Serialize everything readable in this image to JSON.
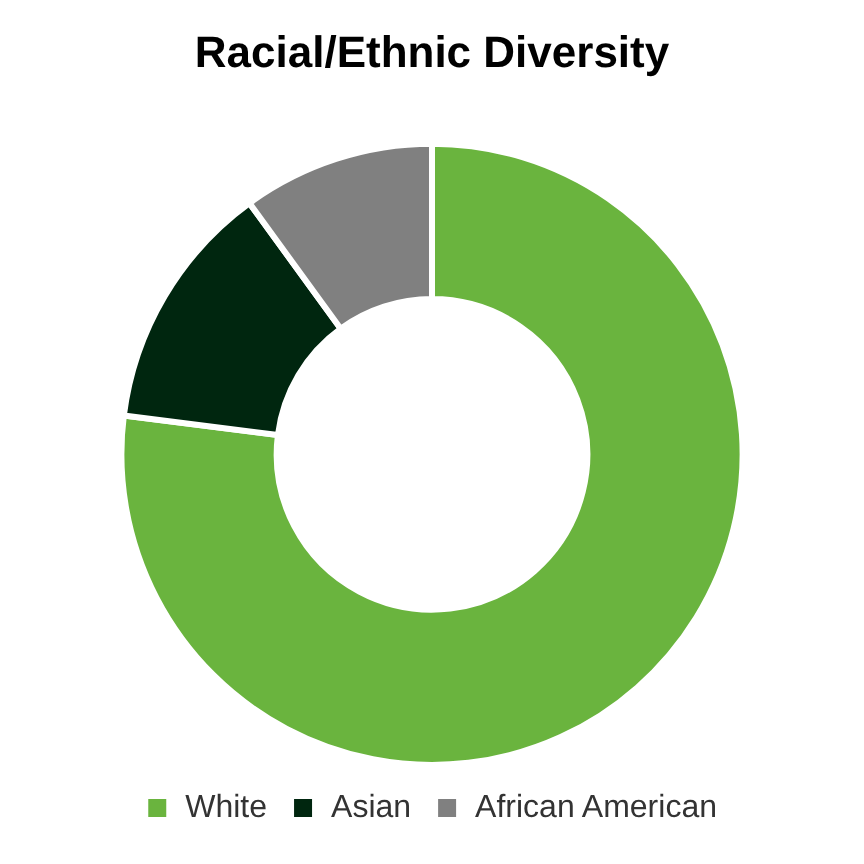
{
  "chart_data": {
    "type": "donut",
    "title": "Racial/Ethnic Diversity",
    "categories": [
      "White",
      "Asian",
      "African American"
    ],
    "values": [
      77,
      13,
      10
    ],
    "colors": [
      "#6ab43e",
      "#00260f",
      "#808080"
    ],
    "legend": "bottom"
  }
}
